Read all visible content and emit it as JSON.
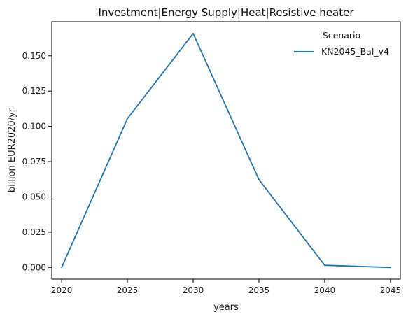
{
  "chart_data": {
    "type": "line",
    "title": "Investment|Energy Supply|Heat|Resistive heater",
    "xlabel": "years",
    "ylabel": "billion EUR2020/yr",
    "x": [
      2020,
      2025,
      2030,
      2035,
      2040,
      2045
    ],
    "x_ticks": [
      "2020",
      "2025",
      "2030",
      "2035",
      "2040",
      "2045"
    ],
    "y_ticks": [
      "0.000",
      "0.025",
      "0.050",
      "0.075",
      "0.100",
      "0.125",
      "0.150"
    ],
    "xlim": [
      2019.25,
      2045.75
    ],
    "ylim": [
      -0.0083,
      0.1742
    ],
    "legend": {
      "title": "Scenario",
      "position": "top-right"
    },
    "grid": false,
    "series": [
      {
        "name": "KN2045_Bal_v4",
        "color": "#1f77b4",
        "values": [
          0.0,
          0.1055,
          0.1658,
          0.0622,
          0.0015,
          0.0
        ]
      }
    ]
  }
}
